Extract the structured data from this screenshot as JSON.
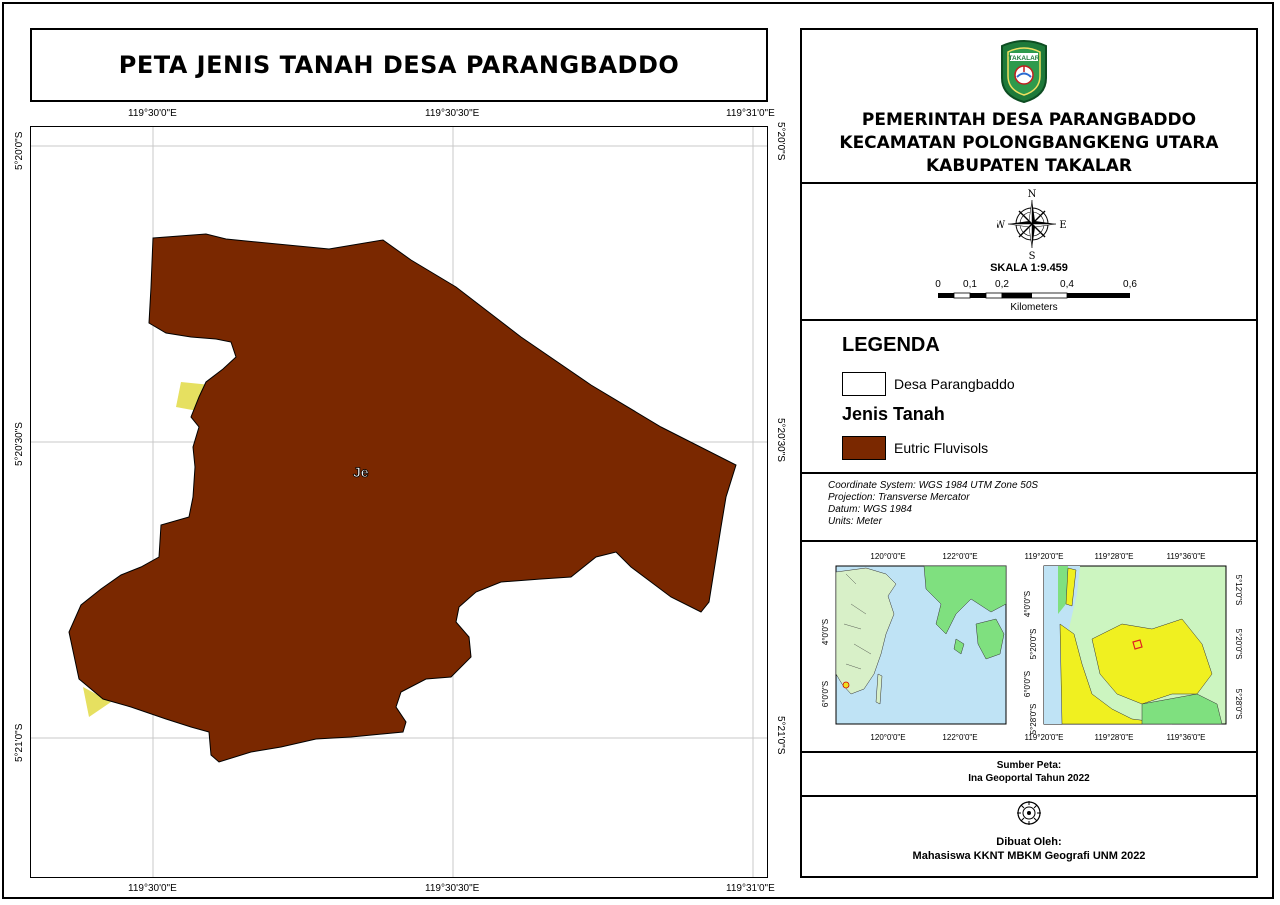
{
  "title": "PETA JENIS TANAH DESA PARANGBADDO",
  "map": {
    "top_labels": [
      "119°30'0\"E",
      "119°30'30\"E",
      "119°31'0\"E"
    ],
    "bottom_labels": [
      "119°30'0\"E",
      "119°30'30\"E",
      "119°31'0\"E"
    ],
    "left_labels": [
      "5°20'0\"S",
      "5°20'30\"S",
      "5°21'0\"S"
    ],
    "right_labels": [
      "5°20'0\"S",
      "5°20'30\"S",
      "5°21'0\"S"
    ],
    "soil_label": "Je",
    "soil_color": "#7a2800"
  },
  "logo": {
    "text": "TAKALAR",
    "color": "#1e7a3a"
  },
  "government": {
    "line1": "PEMERINTAH DESA PARANGBADDO",
    "line2": "KECAMATAN POLONGBANGKENG UTARA",
    "line3": "KABUPATEN TAKALAR"
  },
  "compass": {
    "n": "N",
    "s": "S",
    "e": "E",
    "w": "W"
  },
  "scale": {
    "label": "SKALA 1:9.459",
    "ticks": [
      "0",
      "0,1",
      "0,2",
      "0,4",
      "0,6"
    ],
    "unit": "Kilometers"
  },
  "legend": {
    "title": "LEGENDA",
    "boundary_label": "Desa Parangbaddo",
    "soil_title": "Jenis Tanah",
    "soil_item": "Eutric Fluvisols"
  },
  "projection": {
    "line1": "Coordinate System: WGS 1984 UTM Zone 50S",
    "line2": "Projection: Transverse Mercator",
    "line3": "Datum: WGS 1984",
    "line4": "Units: Meter"
  },
  "inset1": {
    "top": [
      "120°0'0\"E",
      "122°0'0\"E"
    ],
    "bottom": [
      "120°0'0\"E",
      "122°0'0\"E"
    ],
    "left": [
      "4°0'0\"S",
      "6°0'0\"S"
    ]
  },
  "inset2": {
    "top": [
      "119°20'0\"E",
      "119°28'0\"E",
      "119°36'0\"E"
    ],
    "bottom": [
      "119°20'0\"E",
      "119°28'0\"E",
      "119°36'0\"E"
    ],
    "left": [
      "4°0'0\"S",
      "5°20'0\"S",
      "6°0'0\"S",
      "5°28'0\"S"
    ],
    "right": [
      "5°12'0\"S",
      "5°20'0\"S",
      "5°28'0\"S"
    ]
  },
  "source": {
    "line1": "Sumber Peta:",
    "line2": "Ina Geoportal Tahun 2022"
  },
  "credit": {
    "line1": "Dibuat Oleh:",
    "line2": "Mahasiswa KKNT MBKM Geografi UNM 2022"
  }
}
